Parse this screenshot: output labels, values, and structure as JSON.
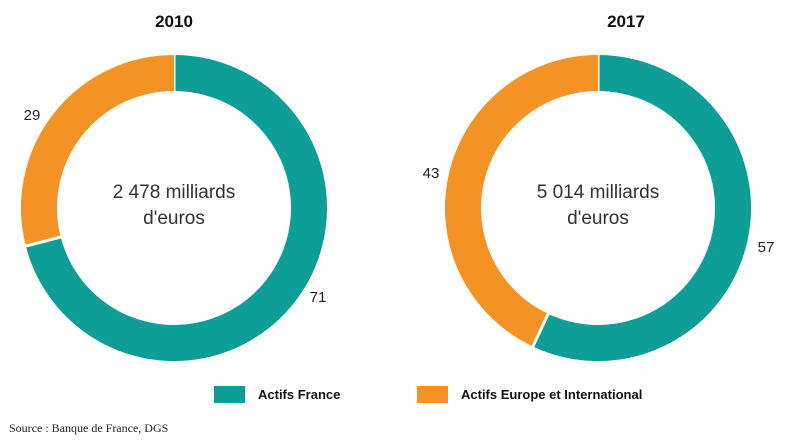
{
  "chart_data": [
    {
      "type": "pie",
      "title": "2010",
      "center_label": [
        "2 478 milliards",
        "d'euros"
      ],
      "slices": [
        {
          "label": "Actifs France",
          "value": 71
        },
        {
          "label": "Actifs Europe et International",
          "value": 29
        }
      ]
    },
    {
      "type": "pie",
      "title": "2017",
      "center_label": [
        "5 014 milliards",
        "d'euros"
      ],
      "slices": [
        {
          "label": "Actifs France",
          "value": 57
        },
        {
          "label": "Actifs Europe et International",
          "value": 43
        }
      ]
    }
  ],
  "legend": [
    {
      "label": "Actifs France",
      "color": "#0e9d97"
    },
    {
      "label": "Actifs Europe et International",
      "color": "#f39325"
    }
  ],
  "source": "Source : Banque de France, DGS"
}
